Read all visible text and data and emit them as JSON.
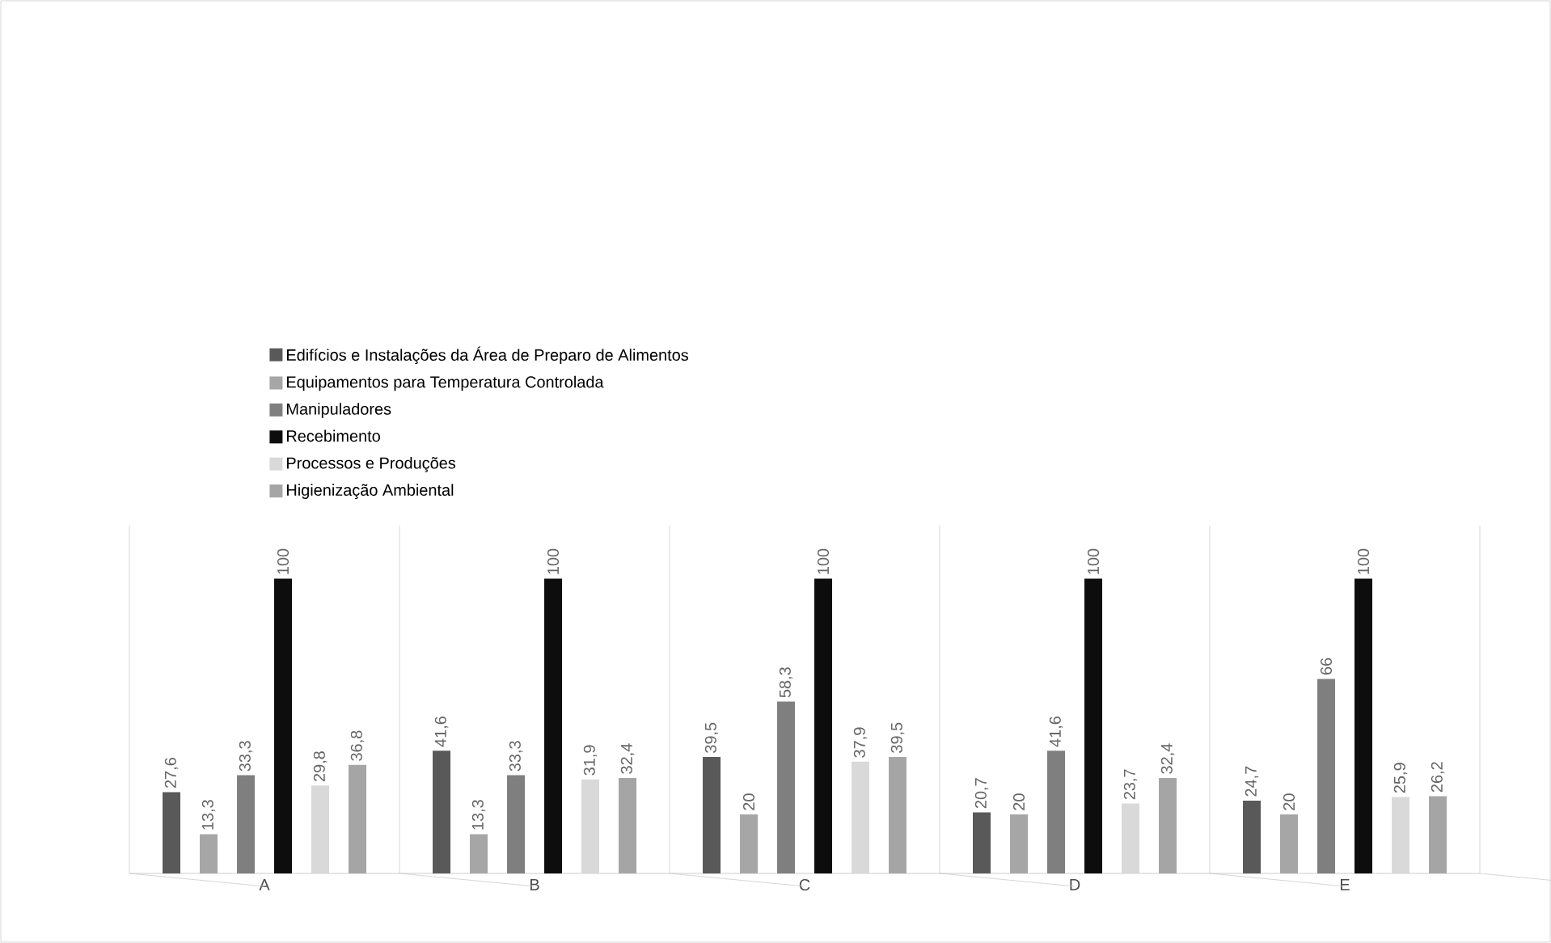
{
  "chart_data": {
    "type": "bar",
    "categories": [
      "A",
      "B",
      "C",
      "D",
      "E"
    ],
    "series": [
      {
        "name": "Edifícios e Instalações da Área de Preparo de Alimentos",
        "color": "#595959",
        "values": [
          27.6,
          41.6,
          39.5,
          20.7,
          24.7
        ],
        "value_labels": [
          "27,6",
          "41,6",
          "39,5",
          "20,7",
          "24,7"
        ]
      },
      {
        "name": "Equipamentos para Temperatura Controlada",
        "color": "#a6a6a6",
        "values": [
          13.3,
          13.3,
          20,
          20,
          20
        ],
        "value_labels": [
          "13,3",
          "13,3",
          "20",
          "20",
          "20"
        ]
      },
      {
        "name": "Manipuladores",
        "color": "#7f7f7f",
        "values": [
          33.3,
          33.3,
          58.3,
          41.6,
          66
        ],
        "value_labels": [
          "33,3",
          "33,3",
          "58,3",
          "41,6",
          "66"
        ]
      },
      {
        "name": "Recebimento",
        "color": "#0d0d0d",
        "values": [
          100,
          100,
          100,
          100,
          100
        ],
        "value_labels": [
          "100",
          "100",
          "100",
          "100",
          "100"
        ]
      },
      {
        "name": "Processos e Produções",
        "color": "#d9d9d9",
        "values": [
          29.8,
          31.9,
          37.9,
          23.7,
          25.9
        ],
        "value_labels": [
          "29,8",
          "31,9",
          "37,9",
          "23,7",
          "25,9"
        ]
      },
      {
        "name": "Higienização Ambiental",
        "color": "#a5a5a5",
        "values": [
          36.8,
          32.4,
          39.5,
          32.4,
          26.2
        ],
        "value_labels": [
          "36,8",
          "32,4",
          "39,5",
          "32,4",
          "26,2"
        ]
      }
    ],
    "legend": "top",
    "grid": "x"
  }
}
